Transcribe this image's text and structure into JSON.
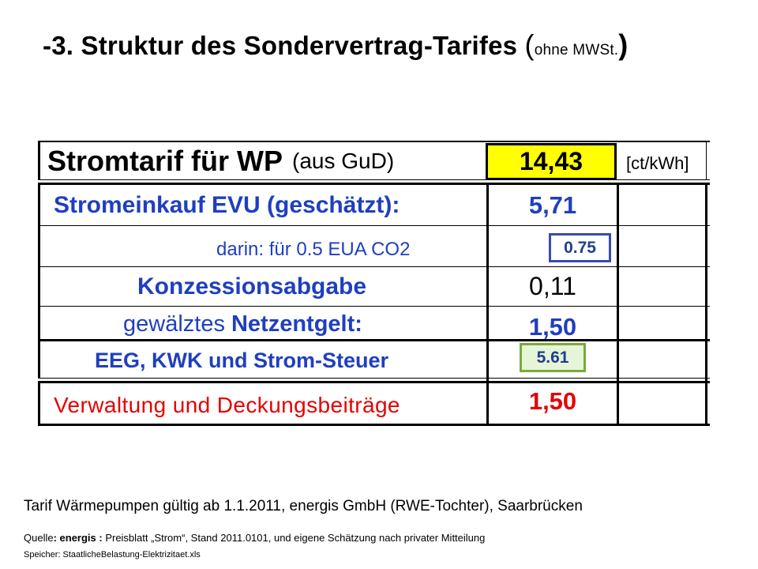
{
  "title": {
    "prefix": "-3.",
    "main": "Struktur des Sondervertrag-Tarifes",
    "paren_open": "(",
    "paren_text": "ohne MWSt.",
    "paren_close": ")"
  },
  "table": {
    "header": {
      "label_bold": "Stromtarif für WP",
      "label_normal": "(aus GuD)",
      "value": "14,43",
      "unit": "[ct/kWh]"
    },
    "rows": [
      {
        "label": "Stromeinkauf EVU (geschätzt):",
        "value": "5,71"
      },
      {
        "label": "darin:  für 0.5 EUA  CO2",
        "box_value": "0.75"
      },
      {
        "label": "Konzessionsabgabe",
        "value": "0,11"
      },
      {
        "label_normal": "gewälztes",
        "label_bold": "Netzentgelt:",
        "value": "1,50"
      },
      {
        "label": "EEG, KWK und Strom-Steuer",
        "box_value": "5.61"
      },
      {
        "label": "Verwaltung und Deckungsbeiträge",
        "value": "1,50"
      }
    ]
  },
  "colors": {
    "blue_text": "#1f3fbf",
    "red_text": "#e60000",
    "yellow_fill": "#ffff00",
    "box_blue_border": "#3b4bb0",
    "box_green_fill": "#e6f5d8",
    "box_green_border": "#7aaa3a",
    "box_text": "#1f3f8f"
  },
  "footer": {
    "tarif": "Tarif Wärmepumpen gültig ab 1.1.2011, energis GmbH (RWE-Tochter), Saarbrücken",
    "quelle_prefix": "Quelle",
    "quelle_bold": ": energis :",
    "quelle_text": " Preisblatt „Strom“, Stand 2011.0101, und eigene Schätzung nach privater Mitteilung",
    "speicher": "Speicher: StaatlicheBelastung-Elektrizitaet.xls"
  }
}
